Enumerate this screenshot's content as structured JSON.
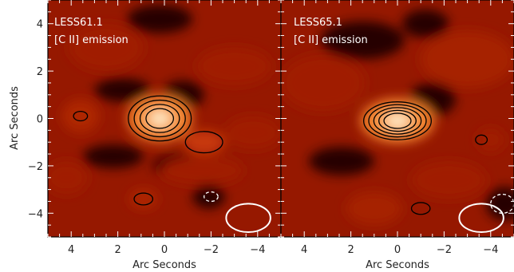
{
  "chart_data": [
    {
      "type": "heatmap",
      "title": "",
      "annotations": [
        "LESS61.1",
        "[C II] emission"
      ],
      "xlabel": "Arc Seconds",
      "ylabel": "Arc Seconds",
      "xlim": [
        5,
        -5
      ],
      "ylim": [
        -5,
        5
      ],
      "xticks": [
        "4",
        "2",
        "0",
        "−2",
        "−4"
      ],
      "yticks": [
        "4",
        "2",
        "0",
        "−2",
        "−4"
      ],
      "blobs": [
        {
          "x": 0.2,
          "y": 0.0,
          "rx": 1.4,
          "ry": 1.0,
          "strength": 1.0
        },
        {
          "x": -1.7,
          "y": -1.0,
          "rx": 0.9,
          "ry": 0.5,
          "strength": 0.7
        },
        {
          "x": 3.6,
          "y": 0.1,
          "rx": 0.8,
          "ry": 0.7,
          "strength": 0.55
        },
        {
          "x": 0.9,
          "y": -3.4,
          "rx": 0.6,
          "ry": 0.4,
          "strength": 0.55
        },
        {
          "x": 2.5,
          "y": 3.0,
          "rx": 1.6,
          "ry": 1.0,
          "strength": 0.45
        },
        {
          "x": -3.0,
          "y": 2.2,
          "rx": 1.6,
          "ry": 0.8,
          "strength": 0.45
        },
        {
          "x": -1.6,
          "y": -2.2,
          "rx": 1.8,
          "ry": 0.6,
          "strength": 0.4
        },
        {
          "x": 4.2,
          "y": -2.5,
          "rx": 0.9,
          "ry": 0.7,
          "strength": 0.4
        },
        {
          "x": -3.8,
          "y": -0.6,
          "rx": 1.2,
          "ry": 0.7,
          "strength": 0.4
        }
      ],
      "dark_spots": [
        {
          "x": -1.9,
          "y": -3.3,
          "rx": 0.7,
          "ry": 0.5
        },
        {
          "x": 1.8,
          "y": 1.2,
          "rx": 1.2,
          "ry": 0.5
        },
        {
          "x": -0.8,
          "y": 1.0,
          "rx": 0.9,
          "ry": 0.6
        },
        {
          "x": 2.2,
          "y": -1.6,
          "rx": 1.3,
          "ry": 0.5
        },
        {
          "x": -0.6,
          "y": -2.0,
          "rx": 1.1,
          "ry": 0.5
        },
        {
          "x": 0.2,
          "y": 4.2,
          "rx": 1.4,
          "ry": 0.6
        }
      ],
      "contours": [
        {
          "x": 0.2,
          "y": 0.0,
          "rx": 1.35,
          "ry": 0.95,
          "levels": 4
        },
        {
          "x": -1.7,
          "y": -1.0,
          "rx": 0.8,
          "ry": 0.45,
          "levels": 1
        },
        {
          "x": 3.6,
          "y": 0.1,
          "rx": 0.3,
          "ry": 0.2,
          "levels": 1
        },
        {
          "x": 0.9,
          "y": -3.4,
          "rx": 0.4,
          "ry": 0.25,
          "levels": 1
        }
      ],
      "negative_contours": [
        {
          "x": -2.0,
          "y": -3.3,
          "rx": 0.3,
          "ry": 0.2
        }
      ],
      "beam": {
        "x": -3.6,
        "y": -4.2,
        "rx": 0.95,
        "ry": 0.6,
        "angle": 0
      }
    },
    {
      "type": "heatmap",
      "title": "",
      "annotations": [
        "LESS65.1",
        "[C II] emission"
      ],
      "xlabel": "Arc Seconds",
      "ylabel": "",
      "xlim": [
        5,
        -5
      ],
      "ylim": [
        -5,
        5
      ],
      "xticks": [
        "4",
        "2",
        "0",
        "−2",
        "−4"
      ],
      "yticks": [],
      "blobs": [
        {
          "x": 0.0,
          "y": -0.1,
          "rx": 1.6,
          "ry": 0.95,
          "strength": 1.0
        },
        {
          "x": -3.0,
          "y": 2.5,
          "rx": 2.0,
          "ry": 1.2,
          "strength": 0.5
        },
        {
          "x": 3.2,
          "y": 1.5,
          "rx": 1.8,
          "ry": 1.2,
          "strength": 0.45
        },
        {
          "x": -2.2,
          "y": -2.6,
          "rx": 1.6,
          "ry": 0.8,
          "strength": 0.45
        },
        {
          "x": 1.0,
          "y": -3.8,
          "rx": 1.2,
          "ry": 0.7,
          "strength": 0.5
        },
        {
          "x": -4.0,
          "y": -0.9,
          "rx": 0.6,
          "ry": 0.5,
          "strength": 0.4
        }
      ],
      "dark_spots": [
        {
          "x": -1.5,
          "y": 0.8,
          "rx": 1.0,
          "ry": 0.7
        },
        {
          "x": 1.5,
          "y": 3.3,
          "rx": 1.8,
          "ry": 0.8
        },
        {
          "x": -4.6,
          "y": -3.6,
          "rx": 0.8,
          "ry": 0.7
        },
        {
          "x": 2.4,
          "y": -1.8,
          "rx": 1.4,
          "ry": 0.6
        },
        {
          "x": -1.2,
          "y": 4.0,
          "rx": 1.0,
          "ry": 0.6
        }
      ],
      "contours": [
        {
          "x": 0.0,
          "y": -0.1,
          "rx": 1.45,
          "ry": 0.8,
          "levels": 5
        },
        {
          "x": -3.6,
          "y": -0.9,
          "rx": 0.25,
          "ry": 0.2,
          "levels": 1
        },
        {
          "x": -1.0,
          "y": -3.8,
          "rx": 0.4,
          "ry": 0.25,
          "levels": 1
        }
      ],
      "negative_contours": [
        {
          "x": -4.5,
          "y": -3.6,
          "rx": 0.5,
          "ry": 0.4
        }
      ],
      "beam": {
        "x": -3.6,
        "y": -4.2,
        "rx": 0.95,
        "ry": 0.6,
        "angle": 0
      }
    }
  ]
}
